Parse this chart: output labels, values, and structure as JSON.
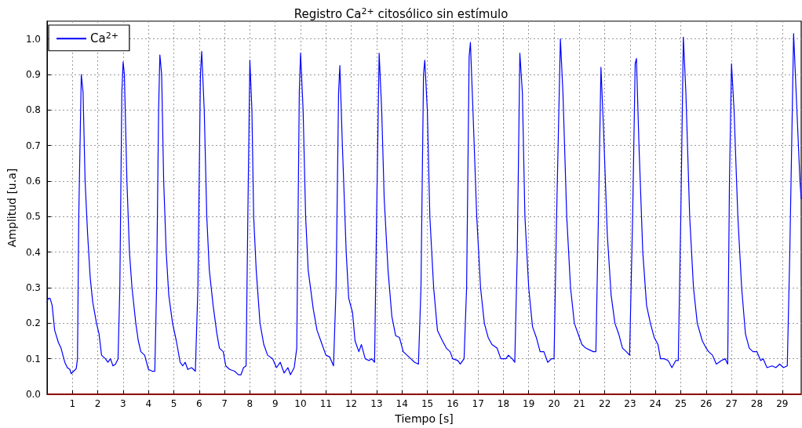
{
  "chart_data": {
    "type": "line",
    "title": "Registro Ca$^{2+}$ citosólico sin estímulo",
    "xlabel": "Tiempo [s]",
    "ylabel": "Amplitud [u.a]",
    "xlim": [
      0,
      29.75
    ],
    "xticks": [
      1,
      2,
      3,
      4,
      5,
      6,
      7,
      8,
      9,
      10,
      11,
      12,
      13,
      14,
      15,
      16,
      17,
      18,
      19,
      20,
      21,
      22,
      23,
      24,
      25,
      26,
      27,
      28,
      29
    ],
    "ylim": [
      0,
      1.05
    ],
    "yticks": [
      {
        "value": 0,
        "label": "0.0"
      },
      {
        "value": 0.1,
        "label": "0.1"
      },
      {
        "value": 0.2,
        "label": "0.2"
      },
      {
        "value": 0.3,
        "label": "0.3"
      },
      {
        "value": 0.4,
        "label": "0.4"
      },
      {
        "value": 0.5,
        "label": "0.5"
      },
      {
        "value": 0.6,
        "label": "0.6"
      },
      {
        "value": 0.7,
        "label": "0.7"
      },
      {
        "value": 0.8,
        "label": "0.8"
      },
      {
        "value": 0.9,
        "label": "0.9"
      },
      {
        "value": 1.0,
        "label": "1.0"
      }
    ],
    "grid": true,
    "legend": "top left",
    "marker": "none",
    "line_style": "solid",
    "ref_lines": [
      {
        "axis": "y",
        "value": 0,
        "color": "#8b0000"
      }
    ],
    "x": [
      0.0,
      0.05,
      0.12,
      0.2,
      0.3,
      0.45,
      0.55,
      0.7,
      0.8,
      0.9,
      0.95,
      1.05,
      1.15,
      1.2,
      1.25,
      1.35,
      1.42,
      1.5,
      1.6,
      1.7,
      1.8,
      1.95,
      2.05,
      2.15,
      2.3,
      2.4,
      2.5,
      2.6,
      2.7,
      2.8,
      2.87,
      2.95,
      3.0,
      3.05,
      3.15,
      3.25,
      3.35,
      3.5,
      3.6,
      3.7,
      3.85,
      4.0,
      4.15,
      4.25,
      4.32,
      4.4,
      4.45,
      4.52,
      4.6,
      4.7,
      4.8,
      4.95,
      5.1,
      5.25,
      5.35,
      5.45,
      5.55,
      5.7,
      5.85,
      5.95,
      6.05,
      6.1,
      6.2,
      6.3,
      6.4,
      6.55,
      6.7,
      6.8,
      6.95,
      7.05,
      7.2,
      7.4,
      7.55,
      7.65,
      7.75,
      7.85,
      7.92,
      8.0,
      8.08,
      8.15,
      8.25,
      8.4,
      8.55,
      8.7,
      8.9,
      9.05,
      9.2,
      9.35,
      9.5,
      9.6,
      9.75,
      9.85,
      9.95,
      10.0,
      10.1,
      10.2,
      10.3,
      10.5,
      10.65,
      10.8,
      11.0,
      11.15,
      11.3,
      11.4,
      11.5,
      11.55,
      11.65,
      11.8,
      11.9,
      12.05,
      12.15,
      12.3,
      12.4,
      12.55,
      12.7,
      12.8,
      12.92,
      13.0,
      13.1,
      13.2,
      13.3,
      13.45,
      13.6,
      13.75,
      13.9,
      14.05,
      14.2,
      14.35,
      14.5,
      14.65,
      14.75,
      14.85,
      14.9,
      15.0,
      15.1,
      15.25,
      15.4,
      15.6,
      15.75,
      15.9,
      16.0,
      16.2,
      16.3,
      16.45,
      16.55,
      16.65,
      16.7,
      16.8,
      16.95,
      17.1,
      17.25,
      17.4,
      17.55,
      17.75,
      17.9,
      18.1,
      18.2,
      18.35,
      18.45,
      18.55,
      18.65,
      18.75,
      18.85,
      19.0,
      19.15,
      19.3,
      19.45,
      19.6,
      19.75,
      19.9,
      20.0,
      20.1,
      20.25,
      20.35,
      20.5,
      20.65,
      20.8,
      21.0,
      21.1,
      21.25,
      21.4,
      21.55,
      21.65,
      21.75,
      21.85,
      21.95,
      22.1,
      22.25,
      22.4,
      22.55,
      22.7,
      22.85,
      22.98,
      23.1,
      23.2,
      23.25,
      23.35,
      23.5,
      23.65,
      23.8,
      23.95,
      24.1,
      24.2,
      24.35,
      24.5,
      24.65,
      24.8,
      24.9,
      25.0,
      25.1,
      25.2,
      25.35,
      25.5,
      25.65,
      25.85,
      26.0,
      26.1,
      26.25,
      26.4,
      26.6,
      26.75,
      26.85,
      26.92,
      27.0,
      27.1,
      27.25,
      27.4,
      27.55,
      27.7,
      27.85,
      28.0,
      28.15,
      28.25,
      28.4,
      28.6,
      28.75,
      28.9,
      29.05,
      29.2,
      29.3,
      29.45,
      29.55,
      29.7,
      29.75
    ],
    "series": [
      {
        "name": "Ca$^{2+}$",
        "color": "#0000ff",
        "values": [
          0.26,
          0.27,
          0.27,
          0.25,
          0.18,
          0.145,
          0.13,
          0.09,
          0.075,
          0.07,
          0.058,
          0.065,
          0.072,
          0.1,
          0.5,
          0.9,
          0.85,
          0.6,
          0.45,
          0.33,
          0.26,
          0.2,
          0.17,
          0.11,
          0.1,
          0.09,
          0.1,
          0.08,
          0.085,
          0.1,
          0.3,
          0.85,
          0.935,
          0.9,
          0.6,
          0.4,
          0.3,
          0.2,
          0.15,
          0.12,
          0.11,
          0.07,
          0.065,
          0.065,
          0.3,
          0.8,
          0.955,
          0.9,
          0.6,
          0.4,
          0.28,
          0.2,
          0.15,
          0.09,
          0.08,
          0.09,
          0.07,
          0.075,
          0.065,
          0.3,
          0.9,
          0.965,
          0.8,
          0.5,
          0.35,
          0.25,
          0.17,
          0.13,
          0.12,
          0.08,
          0.07,
          0.065,
          0.055,
          0.055,
          0.075,
          0.08,
          0.5,
          0.94,
          0.8,
          0.5,
          0.35,
          0.2,
          0.14,
          0.11,
          0.1,
          0.075,
          0.09,
          0.06,
          0.075,
          0.055,
          0.075,
          0.13,
          0.85,
          0.96,
          0.8,
          0.5,
          0.35,
          0.24,
          0.18,
          0.15,
          0.11,
          0.105,
          0.08,
          0.3,
          0.85,
          0.925,
          0.7,
          0.4,
          0.27,
          0.23,
          0.15,
          0.12,
          0.14,
          0.1,
          0.095,
          0.1,
          0.09,
          0.5,
          0.96,
          0.8,
          0.55,
          0.35,
          0.22,
          0.165,
          0.16,
          0.12,
          0.11,
          0.1,
          0.09,
          0.085,
          0.3,
          0.9,
          0.94,
          0.8,
          0.5,
          0.3,
          0.18,
          0.15,
          0.13,
          0.12,
          0.1,
          0.095,
          0.085,
          0.1,
          0.3,
          0.95,
          0.99,
          0.8,
          0.5,
          0.3,
          0.2,
          0.16,
          0.14,
          0.13,
          0.1,
          0.1,
          0.11,
          0.1,
          0.09,
          0.4,
          0.96,
          0.85,
          0.5,
          0.3,
          0.19,
          0.16,
          0.12,
          0.12,
          0.09,
          0.1,
          0.1,
          0.5,
          1.0,
          0.85,
          0.5,
          0.3,
          0.2,
          0.16,
          0.14,
          0.13,
          0.125,
          0.12,
          0.12,
          0.5,
          0.92,
          0.75,
          0.45,
          0.28,
          0.2,
          0.17,
          0.13,
          0.12,
          0.11,
          0.5,
          0.93,
          0.945,
          0.7,
          0.4,
          0.25,
          0.2,
          0.16,
          0.14,
          0.1,
          0.1,
          0.095,
          0.075,
          0.095,
          0.095,
          0.5,
          1.005,
          0.85,
          0.5,
          0.3,
          0.2,
          0.15,
          0.13,
          0.12,
          0.11,
          0.085,
          0.095,
          0.1,
          0.085,
          0.6,
          0.93,
          0.8,
          0.5,
          0.3,
          0.17,
          0.13,
          0.12,
          0.12,
          0.095,
          0.1,
          0.075,
          0.08,
          0.075,
          0.085,
          0.075,
          0.08,
          0.4,
          1.015,
          0.85,
          0.6,
          0.55
        ]
      }
    ]
  }
}
